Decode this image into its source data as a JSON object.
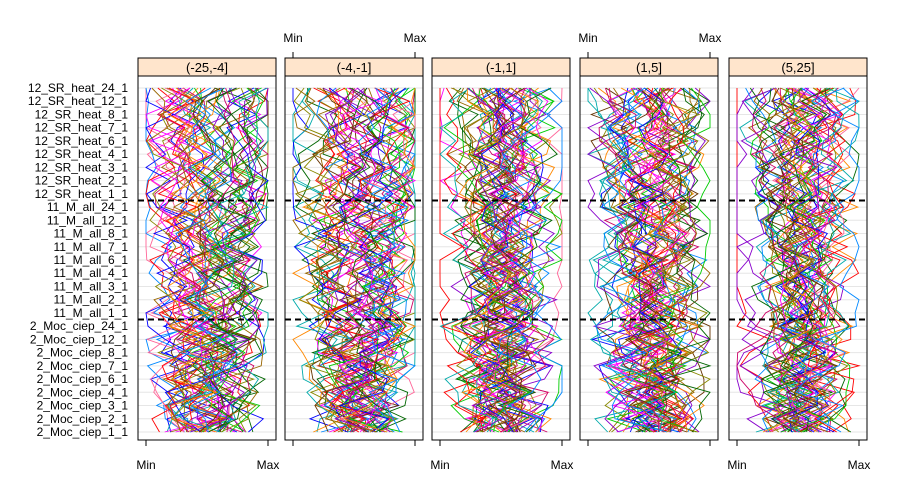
{
  "chart_data": {
    "type": "parallel-coordinates",
    "panels": [
      "(-25,-4]",
      "(-4,-1]",
      "(-1,1]",
      "(1,5]",
      "(5,25]"
    ],
    "variables": [
      "2_Moc_ciep_1_1",
      "2_Moc_ciep_2_1",
      "2_Moc_ciep_3_1",
      "2_Moc_ciep_4_1",
      "2_Moc_ciep_6_1",
      "2_Moc_ciep_7_1",
      "2_Moc_ciep_8_1",
      "2_Moc_ciep_12_1",
      "2_Moc_ciep_24_1",
      "11_M_all_1_1",
      "11_M_all_2_1",
      "11_M_all_3_1",
      "11_M_all_4_1",
      "11_M_all_6_1",
      "11_M_all_7_1",
      "11_M_all_8_1",
      "11_M_all_12_1",
      "11_M_all_24_1",
      "12_SR_heat_1_1",
      "12_SR_heat_2_1",
      "12_SR_heat_3_1",
      "12_SR_heat_4_1",
      "12_SR_heat_6_1",
      "12_SR_heat_7_1",
      "12_SR_heat_8_1",
      "12_SR_heat_12_1",
      "12_SR_heat_24_1"
    ],
    "group_separators_after_index": [
      8,
      17
    ],
    "x_axis": {
      "min_label": "Min",
      "max_label": "Max",
      "range": [
        0,
        1
      ]
    },
    "bottom_axis_panels": [
      0,
      2,
      4
    ],
    "top_axis_panels": [
      1,
      3
    ],
    "lines_per_panel": 55,
    "series_palette": [
      "#ff0000",
      "#00cc00",
      "#0000ff",
      "#ff00ff",
      "#00aaaa",
      "#888800",
      "#ff8800",
      "#8800cc",
      "#006600",
      "#cc0066",
      "#663300",
      "#0088ff",
      "#996600",
      "#ff6699"
    ],
    "strip_color": "#ffe5cc",
    "grid": true
  }
}
